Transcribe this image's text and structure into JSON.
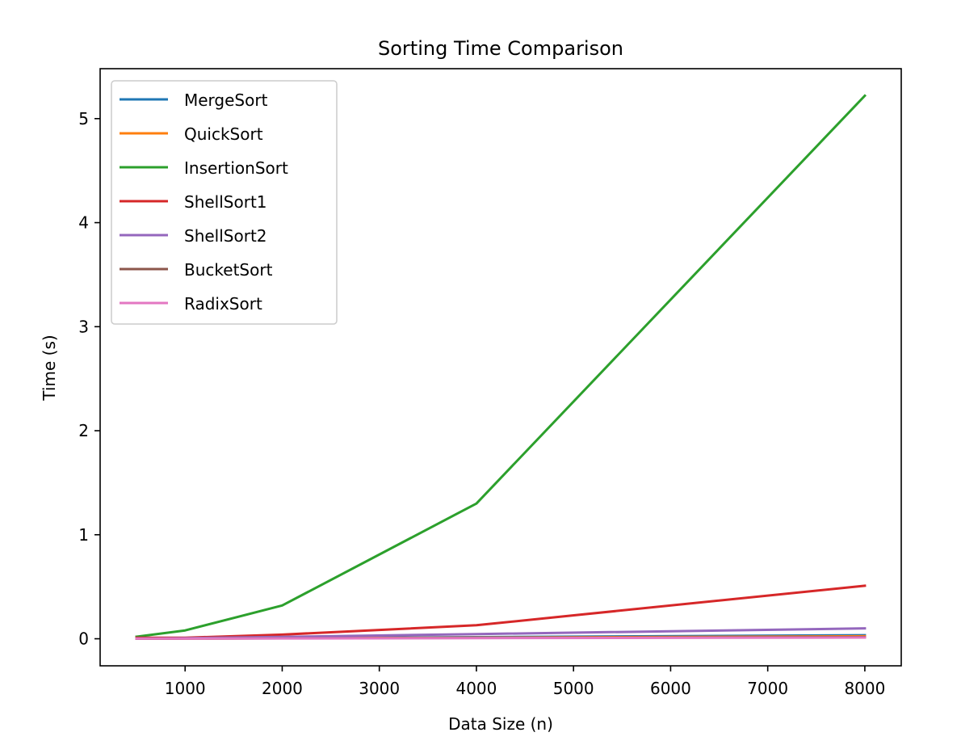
{
  "chart_data": {
    "type": "line",
    "title": "Sorting Time Comparison",
    "xlabel": "Data Size (n)",
    "ylabel": "Time (s)",
    "x": [
      500,
      1000,
      2000,
      4000,
      8000
    ],
    "xlim": [
      125,
      8375
    ],
    "ylim": [
      -0.26,
      5.48
    ],
    "xticks": [
      1000,
      2000,
      3000,
      4000,
      5000,
      6000,
      7000,
      8000
    ],
    "yticks": [
      0,
      1,
      2,
      3,
      4,
      5
    ],
    "legend_position": "top-left",
    "grid": false,
    "series": [
      {
        "name": "MergeSort",
        "color": "#1f77b4",
        "values": [
          0.002,
          0.004,
          0.008,
          0.016,
          0.034
        ]
      },
      {
        "name": "QuickSort",
        "color": "#ff7f0e",
        "values": [
          0.001,
          0.002,
          0.005,
          0.011,
          0.024
        ]
      },
      {
        "name": "InsertionSort",
        "color": "#2ca02c",
        "values": [
          0.02,
          0.08,
          0.32,
          1.3,
          5.22
        ]
      },
      {
        "name": "ShellSort1",
        "color": "#d62728",
        "values": [
          0.01,
          0.01,
          0.04,
          0.13,
          0.51
        ]
      },
      {
        "name": "ShellSort2",
        "color": "#9467bd",
        "values": [
          0.002,
          0.006,
          0.018,
          0.045,
          0.1
        ]
      },
      {
        "name": "BucketSort",
        "color": "#8c564b",
        "values": [
          0.001,
          0.002,
          0.004,
          0.008,
          0.016
        ]
      },
      {
        "name": "RadixSort",
        "color": "#e377c2",
        "values": [
          0.001,
          0.002,
          0.003,
          0.006,
          0.012
        ]
      }
    ]
  }
}
